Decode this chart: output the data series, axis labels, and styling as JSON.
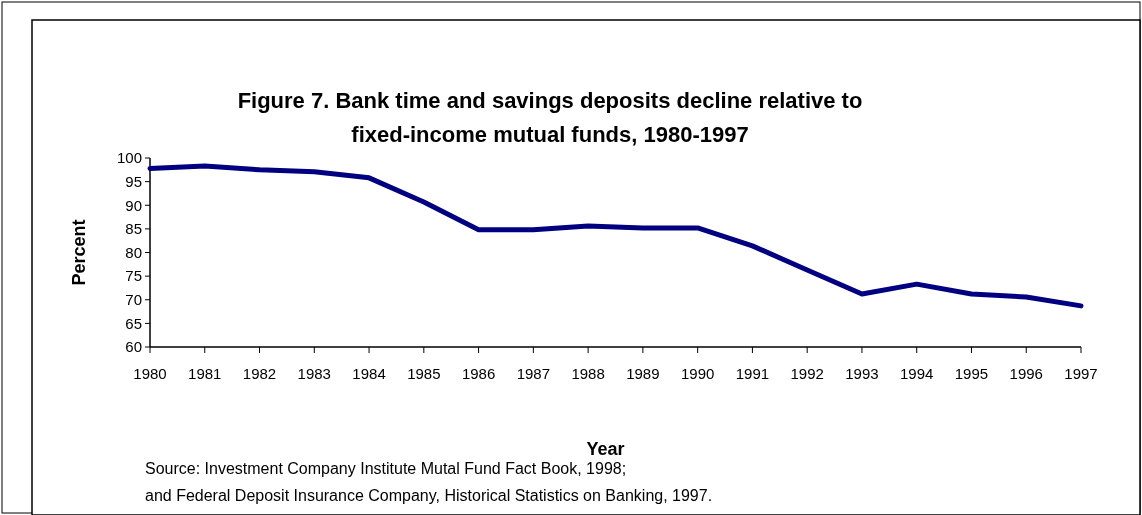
{
  "chart_data": {
    "type": "line",
    "title": "Figure 7. Bank time and savings deposits decline relative to fixed-income mutual funds, 1980-1997",
    "xlabel": "Year",
    "ylabel": "Percent",
    "categories": [
      "1980",
      "1981",
      "1982",
      "1983",
      "1984",
      "1985",
      "1986",
      "1987",
      "1988",
      "1989",
      "1990",
      "1991",
      "1992",
      "1993",
      "1994",
      "1995",
      "1996",
      "1997"
    ],
    "series": [
      {
        "color": "#000080",
        "values": [
          97.8,
          98.3,
          97.5,
          97.1,
          95.8,
          90.7,
          84.8,
          84.8,
          85.6,
          85.2,
          85.2,
          81.4,
          76.3,
          71.2,
          73.3,
          71.2,
          70.6,
          68.7
        ]
      }
    ],
    "ylim": [
      60,
      100
    ],
    "yticks": [
      60,
      65,
      70,
      75,
      80,
      85,
      90,
      95,
      100
    ],
    "grid": false,
    "marker": "none",
    "line_style": "solid",
    "annotations": [
      "Source: Investment Company Institute Mutal Fund Fact Book, 1998;",
      "and Federal Deposit Insurance Company, Historical Statistics on Banking, 1997."
    ]
  }
}
